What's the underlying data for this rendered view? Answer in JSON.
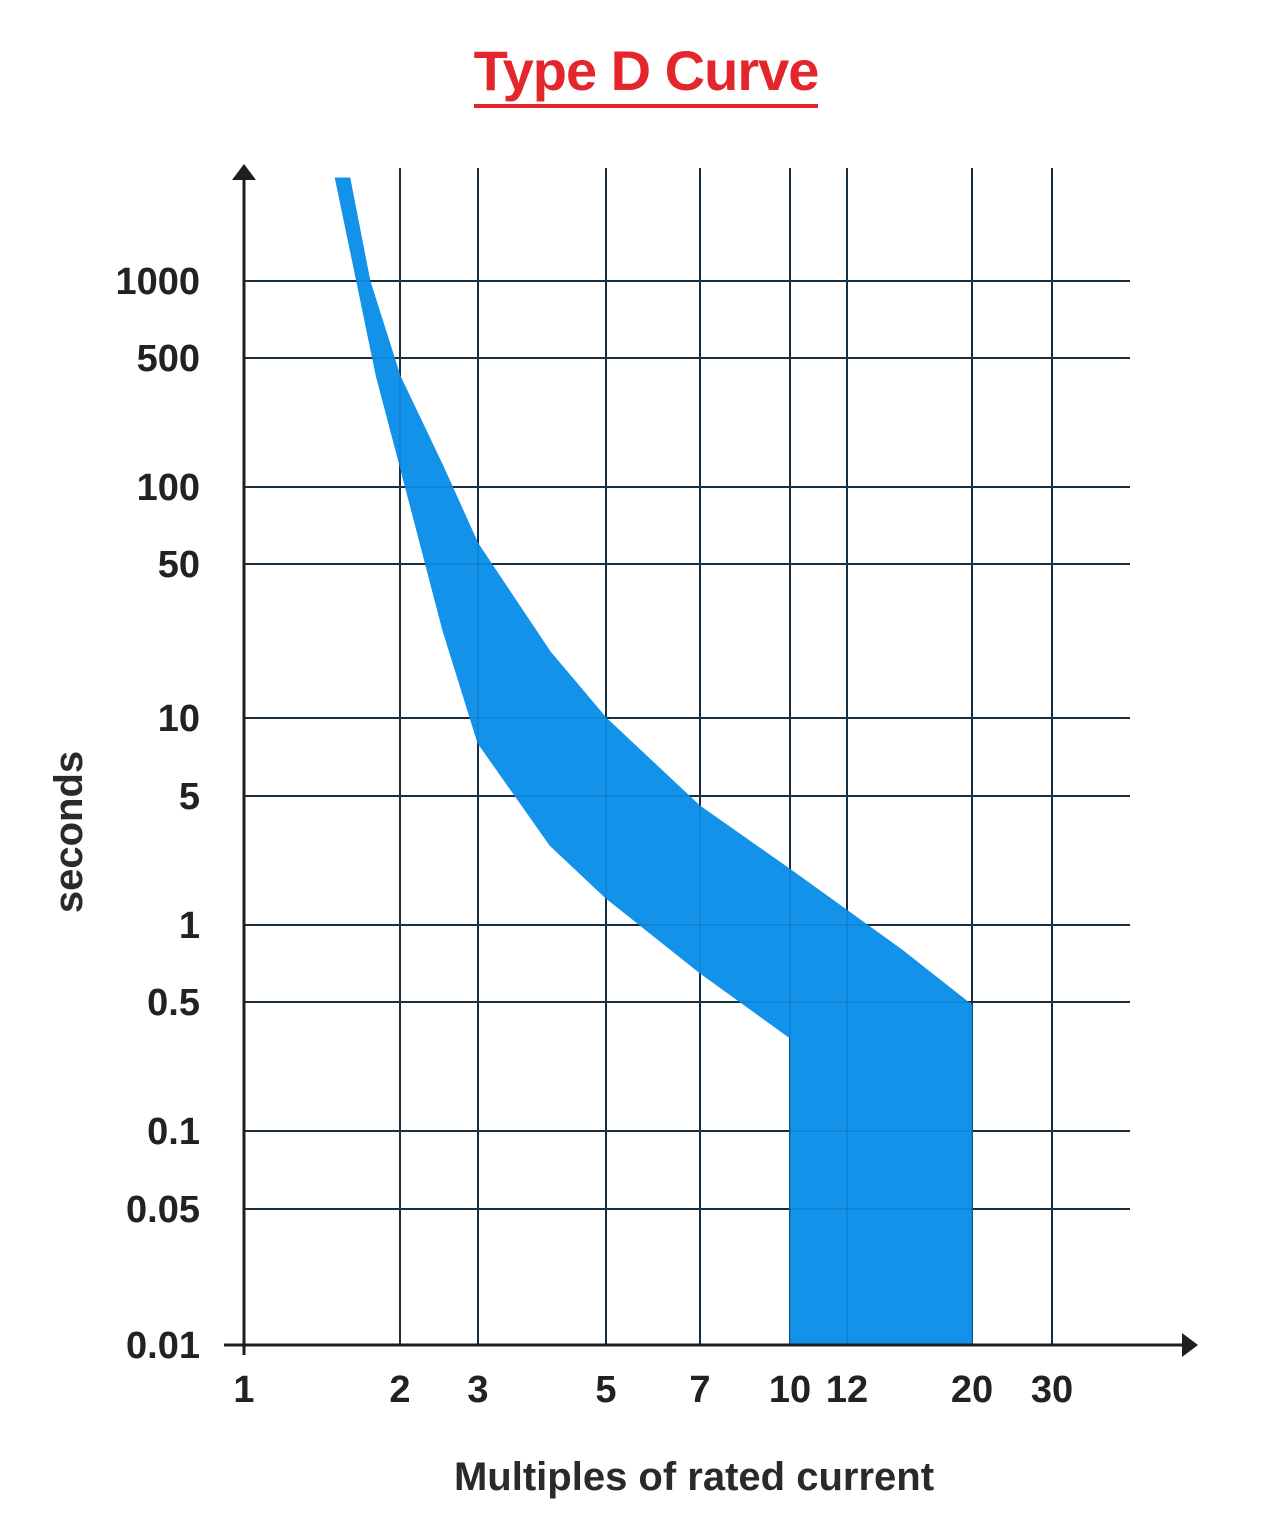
{
  "chart_data": {
    "type": "area",
    "title": "Type D Curve",
    "xlabel": "Multiples of rated current",
    "ylabel": "seconds",
    "x_ticks": [
      {
        "value": 1,
        "label": "1"
      },
      {
        "value": 2,
        "label": "2"
      },
      {
        "value": 3,
        "label": "3"
      },
      {
        "value": 5,
        "label": "5"
      },
      {
        "value": 7,
        "label": "7"
      },
      {
        "value": 10,
        "label": "10"
      },
      {
        "value": 12,
        "label": "12"
      },
      {
        "value": 20,
        "label": "20"
      },
      {
        "value": 30,
        "label": "30"
      }
    ],
    "y_ticks": [
      {
        "value": 0.01,
        "label": "0.01"
      },
      {
        "value": 0.05,
        "label": "0.05"
      },
      {
        "value": 0.1,
        "label": "0.1"
      },
      {
        "value": 0.5,
        "label": "0.5"
      },
      {
        "value": 1,
        "label": "1"
      },
      {
        "value": 5,
        "label": "5"
      },
      {
        "value": 10,
        "label": "10"
      },
      {
        "value": 50,
        "label": "50"
      },
      {
        "value": 100,
        "label": "100"
      },
      {
        "value": 500,
        "label": "500"
      },
      {
        "value": 1000,
        "label": "1000"
      }
    ],
    "grid": true,
    "band_color": "#1292e8",
    "band": {
      "upper": [
        {
          "x": 1.6,
          "y": 3000
        },
        {
          "x": 1.75,
          "y": 1000
        },
        {
          "x": 2.0,
          "y": 400
        },
        {
          "x": 2.5,
          "y": 130
        },
        {
          "x": 3.0,
          "y": 60
        },
        {
          "x": 4.0,
          "y": 20
        },
        {
          "x": 5.0,
          "y": 10
        },
        {
          "x": 7.0,
          "y": 4.4
        },
        {
          "x": 10.0,
          "y": 2.0
        },
        {
          "x": 12.0,
          "y": 1.2
        },
        {
          "x": 15.0,
          "y": 0.8
        },
        {
          "x": 20.0,
          "y": 0.48
        },
        {
          "x": 20.0,
          "y": 0.01
        }
      ],
      "lower": [
        {
          "x": 1.5,
          "y": 3000
        },
        {
          "x": 1.65,
          "y": 1000
        },
        {
          "x": 1.8,
          "y": 400
        },
        {
          "x": 2.0,
          "y": 130
        },
        {
          "x": 2.5,
          "y": 25
        },
        {
          "x": 3.0,
          "y": 8
        },
        {
          "x": 4.0,
          "y": 2.7
        },
        {
          "x": 5.0,
          "y": 1.4
        },
        {
          "x": 7.0,
          "y": 0.65
        },
        {
          "x": 10.0,
          "y": 0.32
        },
        {
          "x": 10.0,
          "y": 0.01
        }
      ]
    }
  }
}
